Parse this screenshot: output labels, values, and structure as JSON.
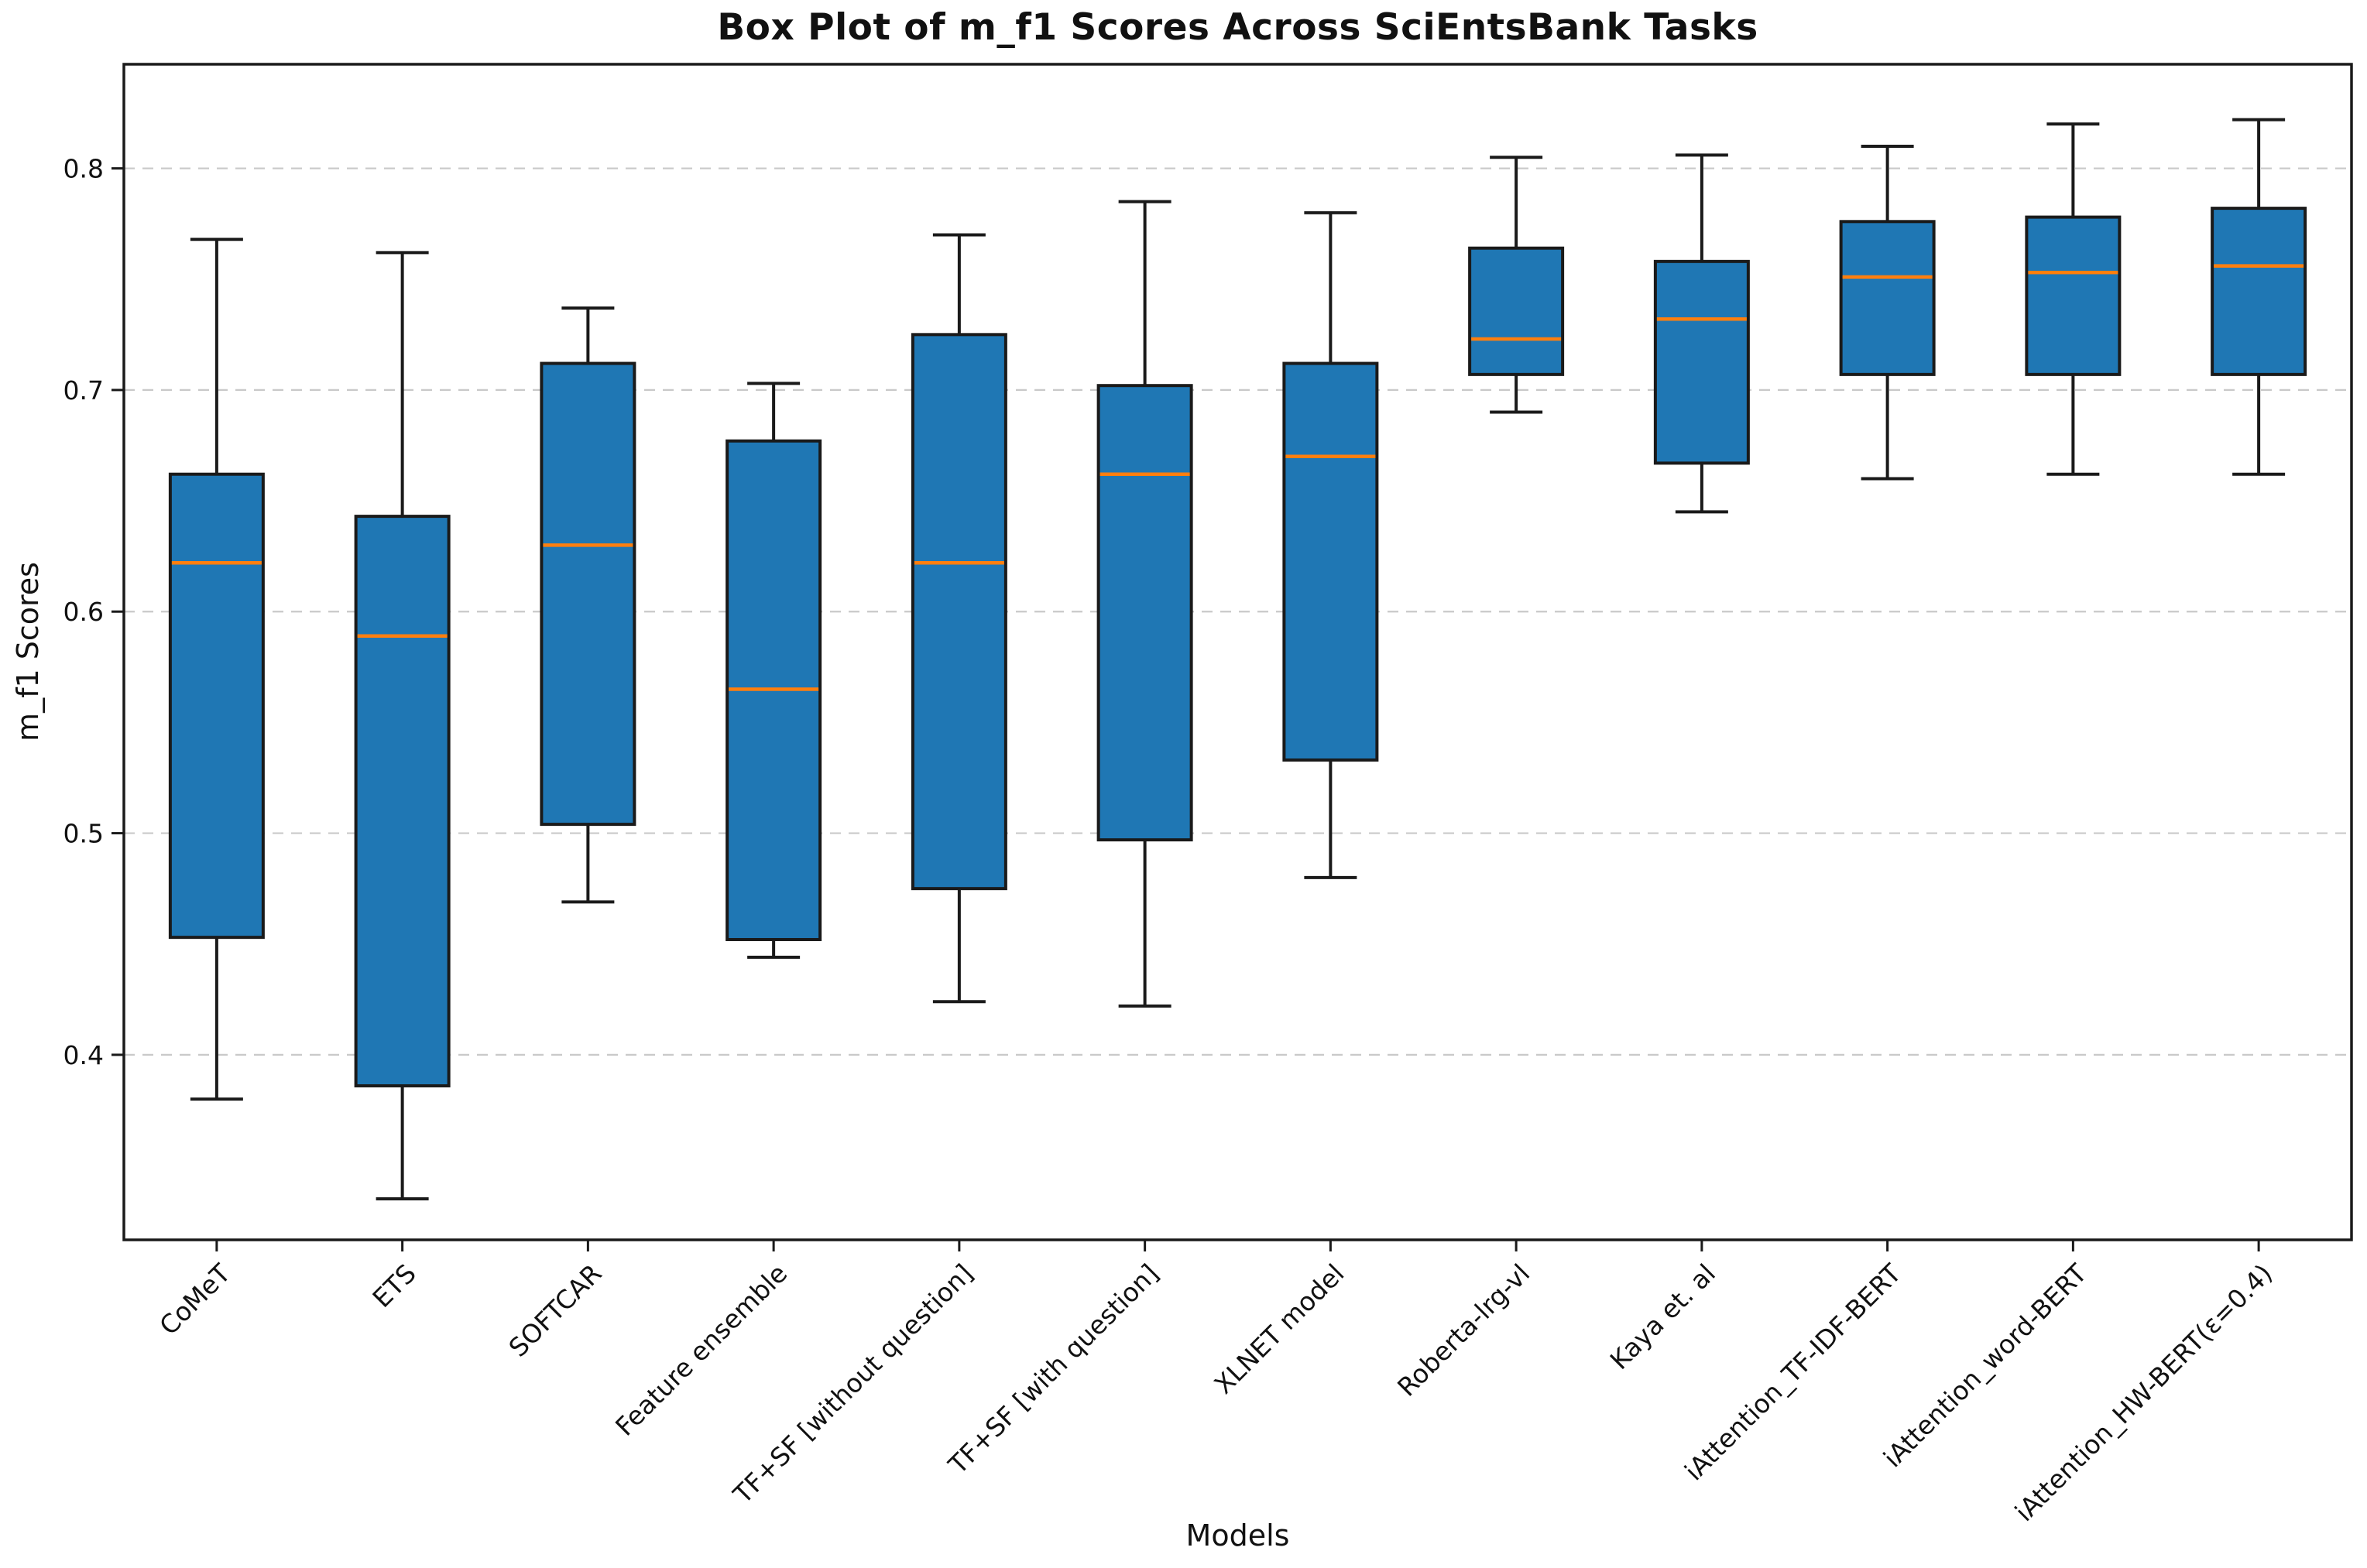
{
  "chart_data": {
    "type": "boxplot",
    "title": "Box Plot of m_f1 Scores Across SciEntsBank Tasks",
    "xlabel": "Models",
    "ylabel": "m_f1 Scores",
    "ylim": [
      0.3165,
      0.847
    ],
    "yticks": [
      0.4,
      0.5,
      0.6,
      0.7,
      0.8
    ],
    "grid": true,
    "grid_style": "dashed",
    "legend": "none",
    "colors": {
      "box_fill": "#1f77b4",
      "box_edge": "#1a1a1a",
      "median": "#ff7f0e",
      "whisker": "#1a1a1a",
      "grid": "#c9c9c9",
      "spine": "#1a1a1a",
      "background": "#ffffff"
    },
    "series": [
      {
        "label": "CoMeT",
        "whislo": 0.38,
        "q1": 0.453,
        "med": 0.622,
        "q3": 0.662,
        "whishi": 0.768
      },
      {
        "label": "ETS",
        "whislo": 0.335,
        "q1": 0.386,
        "med": 0.589,
        "q3": 0.643,
        "whishi": 0.762
      },
      {
        "label": "SOFTCAR",
        "whislo": 0.469,
        "q1": 0.504,
        "med": 0.63,
        "q3": 0.712,
        "whishi": 0.737
      },
      {
        "label": "Feature ensemble",
        "whislo": 0.444,
        "q1": 0.452,
        "med": 0.565,
        "q3": 0.677,
        "whishi": 0.703
      },
      {
        "label": "TF+SF [without question]",
        "whislo": 0.424,
        "q1": 0.475,
        "med": 0.622,
        "q3": 0.725,
        "whishi": 0.77
      },
      {
        "label": "TF+SF [with question]",
        "whislo": 0.422,
        "q1": 0.497,
        "med": 0.662,
        "q3": 0.702,
        "whishi": 0.785
      },
      {
        "label": "XLNET model",
        "whislo": 0.48,
        "q1": 0.533,
        "med": 0.67,
        "q3": 0.712,
        "whishi": 0.78
      },
      {
        "label": "Roberta-lrg-vl",
        "whislo": 0.69,
        "q1": 0.707,
        "med": 0.723,
        "q3": 0.764,
        "whishi": 0.805
      },
      {
        "label": "Kaya et. al",
        "whislo": 0.645,
        "q1": 0.667,
        "med": 0.732,
        "q3": 0.758,
        "whishi": 0.806
      },
      {
        "label": "iAttention_TF-IDF-BERT",
        "whislo": 0.66,
        "q1": 0.707,
        "med": 0.751,
        "q3": 0.776,
        "whishi": 0.81
      },
      {
        "label": "iAttention_word-BERT",
        "whislo": 0.662,
        "q1": 0.707,
        "med": 0.753,
        "q3": 0.778,
        "whishi": 0.82
      },
      {
        "label": "iAttention_HW-BERT(ε=0.4)",
        "whislo": 0.662,
        "q1": 0.707,
        "med": 0.756,
        "q3": 0.782,
        "whishi": 0.822
      }
    ]
  }
}
